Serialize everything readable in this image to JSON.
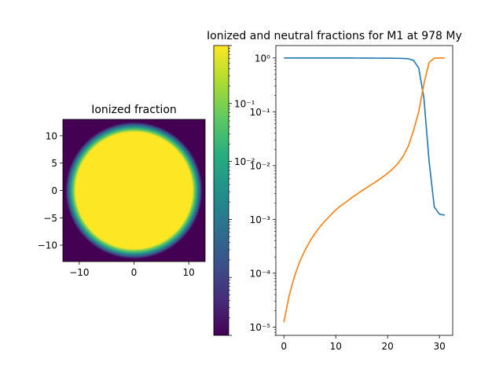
{
  "chart_data": [
    {
      "type": "heatmap",
      "title": "Ionized fraction",
      "xlabel": "",
      "ylabel": "",
      "xlim": [
        -13,
        13
      ],
      "ylim": [
        -13,
        13
      ],
      "xticks": [
        -10,
        0,
        10
      ],
      "xtick_labels": [
        "−10",
        "0",
        "10"
      ],
      "yticks": [
        10,
        5,
        0,
        -5,
        -10
      ],
      "ytick_labels": [
        "10",
        "5",
        "0",
        "−5",
        "−10"
      ],
      "sphere_radius": 11.5,
      "inside_value": 1.0,
      "outside_value": 0.0,
      "colormap": "viridis",
      "colormap_stops": [
        "#440154",
        "#472d7b",
        "#3b528b",
        "#2c728e",
        "#21918c",
        "#28ae80",
        "#5ec962",
        "#addc30",
        "#fde725"
      ],
      "colorbar": {
        "scale": "log",
        "range": [
          1e-05,
          1
        ],
        "major_labels": [
          {
            "value": 0.1,
            "label": "10⁻¹"
          },
          {
            "value": 0.01,
            "label": "10⁻²"
          }
        ]
      }
    },
    {
      "type": "line",
      "title": "Ionized and neutral fractions for M1 at 978 My",
      "xlabel": "",
      "ylabel": "",
      "yscale": "log",
      "xlim": [
        -1.55,
        32.55
      ],
      "ylim": [
        7e-06,
        1.7
      ],
      "xticks": [
        0,
        10,
        20,
        30
      ],
      "yticks": [
        {
          "value": 1e-05,
          "label": "10⁻⁵"
        },
        {
          "value": 0.0001,
          "label": "10⁻⁴"
        },
        {
          "value": 0.001,
          "label": "10⁻³"
        },
        {
          "value": 0.01,
          "label": "10⁻²"
        },
        {
          "value": 0.1,
          "label": "10⁻¹"
        },
        {
          "value": 1,
          "label": "10⁰"
        }
      ],
      "x": [
        0,
        1,
        2,
        3,
        4,
        5,
        6,
        7,
        8,
        9,
        10,
        11,
        12,
        13,
        14,
        15,
        16,
        17,
        18,
        19,
        20,
        21,
        22,
        23,
        24,
        25,
        26,
        27,
        28,
        29,
        30,
        31
      ],
      "series": [
        {
          "color": "#1f77b4",
          "values": [
            0.99999,
            0.99999,
            0.99999,
            0.9999,
            0.9998,
            0.9997,
            0.9996,
            0.9995,
            0.9993,
            0.9991,
            0.9988,
            0.9985,
            0.9981,
            0.9976,
            0.997,
            0.9963,
            0.9955,
            0.9945,
            0.9934,
            0.992,
            0.9902,
            0.988,
            0.985,
            0.98,
            0.965,
            0.9,
            0.65,
            0.18,
            0.012,
            0.0017,
            0.00125,
            0.0012
          ]
        },
        {
          "color": "#ff7f0e",
          "values": [
            1.23e-05,
            3.8e-05,
            8.5e-05,
            0.00016,
            0.00026,
            0.00039,
            0.00055,
            0.00074,
            0.00095,
            0.0012,
            0.0015,
            0.0018,
            0.0021,
            0.0025,
            0.0029,
            0.0034,
            0.0039,
            0.0045,
            0.0052,
            0.0061,
            0.0072,
            0.0087,
            0.011,
            0.015,
            0.023,
            0.045,
            0.1,
            0.33,
            0.83,
            0.99,
            1.0,
            1.0
          ]
        }
      ]
    }
  ]
}
